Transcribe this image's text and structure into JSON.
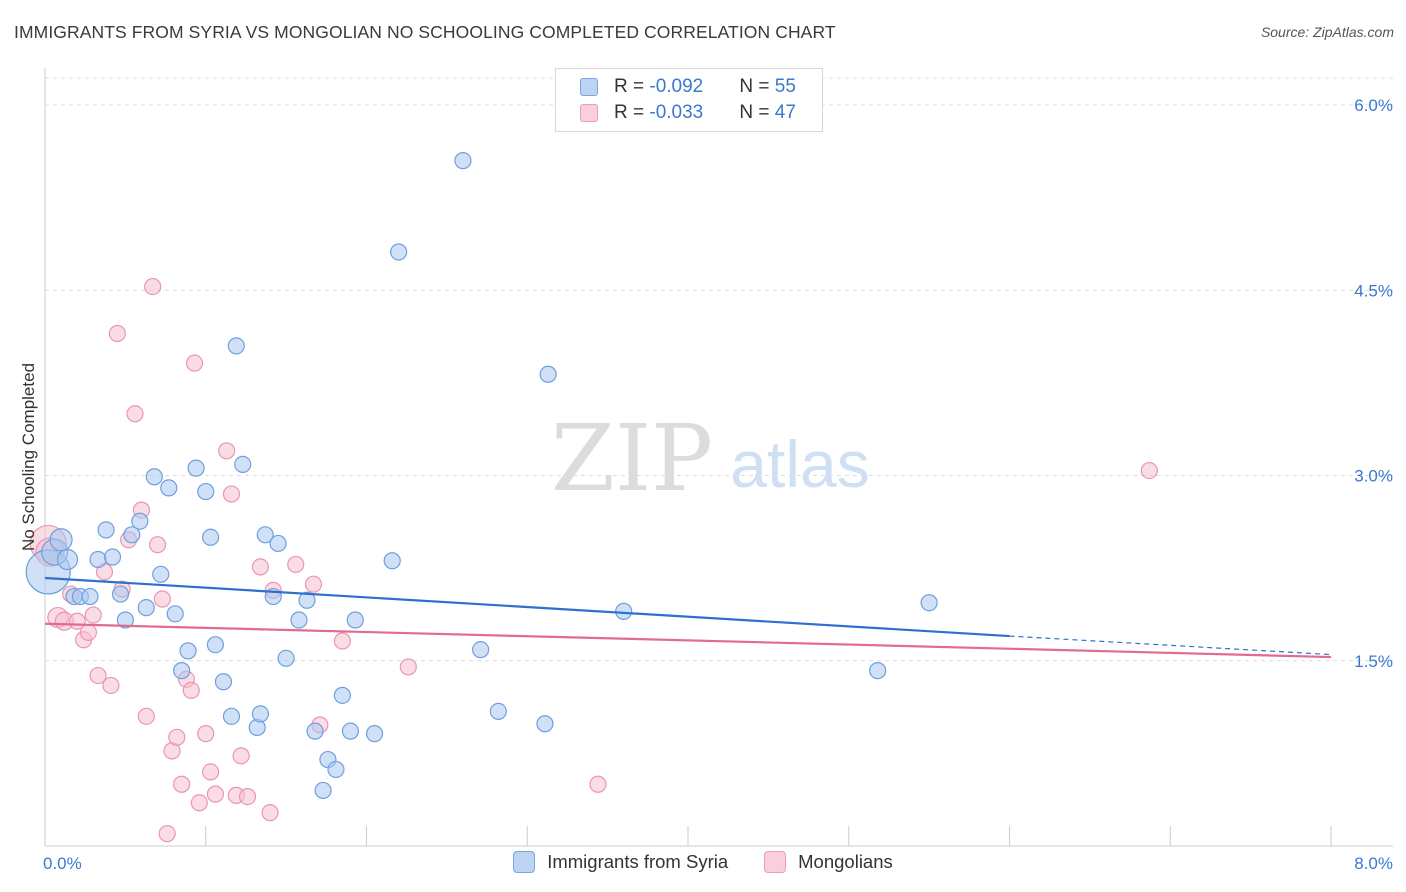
{
  "title": "IMMIGRANTS FROM SYRIA VS MONGOLIAN NO SCHOOLING COMPLETED CORRELATION CHART",
  "source": "Source: ZipAtlas.com",
  "watermark": {
    "zip": "ZIP",
    "atlas": "atlas"
  },
  "legend": {
    "rows": [
      {
        "r_label": "R = ",
        "r_value": "-0.092",
        "n_label": "N = ",
        "n_value": "55"
      },
      {
        "r_label": "R = ",
        "r_value": "-0.033",
        "n_label": "N = ",
        "n_value": "47"
      }
    ]
  },
  "colors": {
    "syria_fill": "#aac8f0",
    "syria_stroke": "#6f9fde",
    "syria_line": "#2f6fce",
    "mongol_fill": "#f6bfd0",
    "mongol_stroke": "#ec95b2",
    "mongol_line": "#e06b93",
    "tick_label": "#3b78cf",
    "grid": "#dcdcdc"
  },
  "chart_data": {
    "type": "scatter",
    "title": "IMMIGRANTS FROM SYRIA VS MONGOLIAN NO SCHOOLING COMPLETED CORRELATION CHART",
    "xlabel": "",
    "ylabel": "No Schooling Completed",
    "xlim": [
      0,
      8.0
    ],
    "ylim": [
      0,
      6.3
    ],
    "x_tick_labels": [
      "0.0%",
      "8.0%"
    ],
    "y_ticks": [
      1.5,
      3.0,
      4.5,
      6.0
    ],
    "y_tick_labels": [
      "1.5%",
      "3.0%",
      "4.5%",
      "6.0%"
    ],
    "grid": true,
    "legend_position": "top-center",
    "series": [
      {
        "name": "Immigrants from Syria",
        "R": -0.092,
        "N": 55,
        "trend": {
          "x0": 0.0,
          "y0": 2.17,
          "x1": 6.0,
          "y1": 1.7,
          "dashed_to": 8.0,
          "dashed_y": 1.55
        },
        "points": [
          [
            0.02,
            2.22,
            22
          ],
          [
            0.06,
            2.38,
            13
          ],
          [
            0.1,
            2.48,
            11
          ],
          [
            0.14,
            2.32,
            10
          ],
          [
            0.18,
            2.02,
            8
          ],
          [
            0.22,
            2.02,
            8
          ],
          [
            0.28,
            2.02,
            8
          ],
          [
            0.33,
            2.32,
            8
          ],
          [
            0.38,
            2.56,
            8
          ],
          [
            0.42,
            2.34,
            8
          ],
          [
            0.47,
            2.04,
            8
          ],
          [
            0.5,
            1.83,
            8
          ],
          [
            0.54,
            2.52,
            8
          ],
          [
            0.59,
            2.63,
            8
          ],
          [
            0.63,
            1.93,
            8
          ],
          [
            0.68,
            2.99,
            8
          ],
          [
            0.72,
            2.2,
            8
          ],
          [
            0.77,
            2.9,
            8
          ],
          [
            0.81,
            1.88,
            8
          ],
          [
            0.85,
            1.42,
            8
          ],
          [
            0.89,
            1.58,
            8
          ],
          [
            0.94,
            3.06,
            8
          ],
          [
            1.0,
            2.87,
            8
          ],
          [
            1.03,
            2.5,
            8
          ],
          [
            1.06,
            1.63,
            8
          ],
          [
            1.11,
            1.33,
            8
          ],
          [
            1.16,
            1.05,
            8
          ],
          [
            1.19,
            4.05,
            8
          ],
          [
            1.23,
            3.09,
            8
          ],
          [
            1.32,
            0.96,
            8
          ],
          [
            1.34,
            1.07,
            8
          ],
          [
            1.37,
            2.52,
            8
          ],
          [
            1.42,
            2.02,
            8
          ],
          [
            1.45,
            2.45,
            8
          ],
          [
            1.5,
            1.52,
            8
          ],
          [
            1.58,
            1.83,
            8
          ],
          [
            1.63,
            1.99,
            8
          ],
          [
            1.68,
            0.93,
            8
          ],
          [
            1.73,
            0.45,
            8
          ],
          [
            1.76,
            0.7,
            8
          ],
          [
            1.81,
            0.62,
            8
          ],
          [
            1.85,
            1.22,
            8
          ],
          [
            1.9,
            0.93,
            8
          ],
          [
            1.93,
            1.83,
            8
          ],
          [
            2.05,
            0.91,
            8
          ],
          [
            2.16,
            2.31,
            8
          ],
          [
            2.2,
            4.81,
            8
          ],
          [
            2.6,
            5.55,
            8
          ],
          [
            2.71,
            1.59,
            8
          ],
          [
            2.82,
            1.09,
            8
          ],
          [
            3.11,
            0.99,
            8
          ],
          [
            3.13,
            3.82,
            8
          ],
          [
            3.6,
            1.9,
            8
          ],
          [
            5.18,
            1.42,
            8
          ],
          [
            5.5,
            1.97,
            8
          ]
        ]
      },
      {
        "name": "Mongolians",
        "R": -0.033,
        "N": 47,
        "trend": {
          "x0": 0.0,
          "y0": 1.8,
          "x1": 8.0,
          "y1": 1.53
        },
        "points": [
          [
            0.02,
            2.45,
            18
          ],
          [
            0.03,
            2.38,
            14
          ],
          [
            0.08,
            1.85,
            10
          ],
          [
            0.12,
            1.82,
            9
          ],
          [
            0.16,
            2.04,
            8
          ],
          [
            0.2,
            1.82,
            8
          ],
          [
            0.24,
            1.67,
            8
          ],
          [
            0.27,
            1.73,
            8
          ],
          [
            0.3,
            1.87,
            8
          ],
          [
            0.33,
            1.38,
            8
          ],
          [
            0.37,
            2.22,
            8
          ],
          [
            0.41,
            1.3,
            8
          ],
          [
            0.45,
            4.15,
            8
          ],
          [
            0.48,
            2.08,
            8
          ],
          [
            0.52,
            2.48,
            8
          ],
          [
            0.56,
            3.5,
            8
          ],
          [
            0.6,
            2.72,
            8
          ],
          [
            0.63,
            1.05,
            8
          ],
          [
            0.67,
            4.53,
            8
          ],
          [
            0.7,
            2.44,
            8
          ],
          [
            0.73,
            2.0,
            8
          ],
          [
            0.76,
            0.1,
            8
          ],
          [
            0.79,
            0.77,
            8
          ],
          [
            0.82,
            0.88,
            8
          ],
          [
            0.85,
            0.5,
            8
          ],
          [
            0.88,
            1.35,
            8
          ],
          [
            0.91,
            1.26,
            8
          ],
          [
            0.93,
            3.91,
            8
          ],
          [
            0.96,
            0.35,
            8
          ],
          [
            1.0,
            0.91,
            8
          ],
          [
            1.03,
            0.6,
            8
          ],
          [
            1.06,
            0.42,
            8
          ],
          [
            1.13,
            3.2,
            8
          ],
          [
            1.16,
            2.85,
            8
          ],
          [
            1.19,
            0.41,
            8
          ],
          [
            1.22,
            0.73,
            8
          ],
          [
            1.26,
            0.4,
            8
          ],
          [
            1.34,
            2.26,
            8
          ],
          [
            1.4,
            0.27,
            8
          ],
          [
            1.42,
            2.07,
            8
          ],
          [
            1.56,
            2.28,
            8
          ],
          [
            1.67,
            2.12,
            8
          ],
          [
            1.71,
            0.98,
            8
          ],
          [
            1.85,
            1.66,
            8
          ],
          [
            2.26,
            1.45,
            8
          ],
          [
            3.44,
            0.5,
            8
          ],
          [
            6.87,
            3.04,
            8
          ]
        ]
      }
    ]
  },
  "bottom_legend": [
    "Immigrants from Syria",
    "Mongolians"
  ]
}
